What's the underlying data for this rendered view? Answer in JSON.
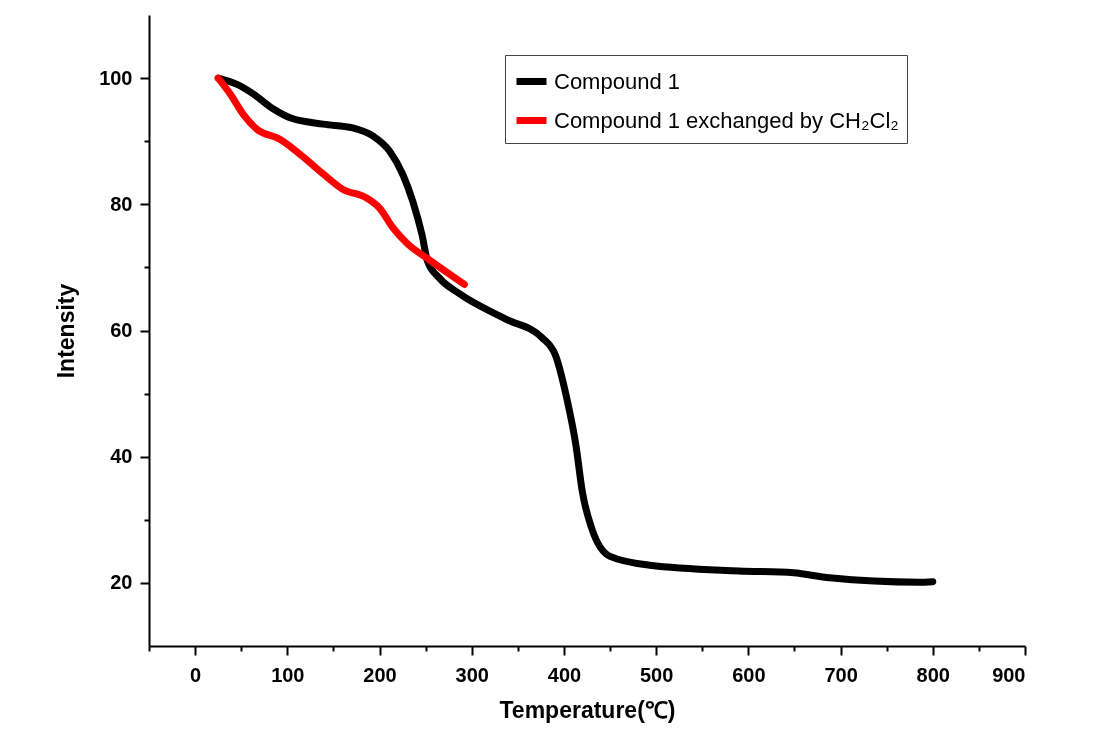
{
  "chart_data": {
    "type": "line",
    "xlabel": "Temperature(℃)",
    "ylabel": "Intensity",
    "xlim": [
      -50,
      900
    ],
    "ylim": [
      10,
      110
    ],
    "xticks": [
      {
        "value": -50,
        "label": null
      },
      0,
      {
        "value": 50,
        "label": null
      },
      100,
      {
        "value": 150,
        "label": null
      },
      200,
      {
        "value": 250,
        "label": null
      },
      300,
      {
        "value": 350,
        "label": null
      },
      400,
      {
        "value": 450,
        "label": null
      },
      500,
      {
        "value": 550,
        "label": null
      },
      600,
      {
        "value": 650,
        "label": null
      },
      700,
      {
        "value": 750,
        "label": null
      },
      800,
      {
        "value": 850,
        "label": null
      },
      900
    ],
    "yticks": [
      20,
      {
        "value": 30,
        "label": null
      },
      40,
      {
        "value": 50,
        "label": null
      },
      60,
      {
        "value": 70,
        "label": null
      },
      80,
      {
        "value": 90,
        "label": null
      },
      100
    ],
    "grid": false,
    "legend": "top right",
    "marker": "none",
    "line_style": "solid",
    "series": [
      {
        "name": "Compound 1",
        "color": "#000000",
        "x": [
          25,
          45.5,
          63,
          85,
          103,
          139,
          171,
          193,
          211,
          225,
          236,
          246,
          252,
          265,
          287,
          337,
          376,
          391,
          403,
          413,
          420,
          430,
          450,
          493,
          590,
          649,
          688,
          785,
          800
        ],
        "values": [
          100,
          99,
          97.5,
          95.1,
          93.7,
          92.7,
          92.1,
          90.8,
          88.4,
          84.8,
          80.5,
          75.2,
          71,
          68.3,
          65.8,
          61.8,
          58.9,
          56,
          49.3,
          41.8,
          34.4,
          28.7,
          24.2,
          22.8,
          21.9,
          21.6,
          20.8,
          20.1,
          20.2
        ]
      },
      {
        "name": "Compound 1 exchanged by CH₂Cl₂",
        "color": "#ff0000",
        "x": [
          25,
          38,
          52,
          67,
          92,
          114,
          139,
          160,
          186,
          200,
          215,
          230,
          251,
          292
        ],
        "values": [
          100,
          97.5,
          94.3,
          91.9,
          90.3,
          87.9,
          84.8,
          82.4,
          81,
          79.4,
          76.2,
          73.8,
          71.5,
          67.3
        ]
      }
    ]
  }
}
